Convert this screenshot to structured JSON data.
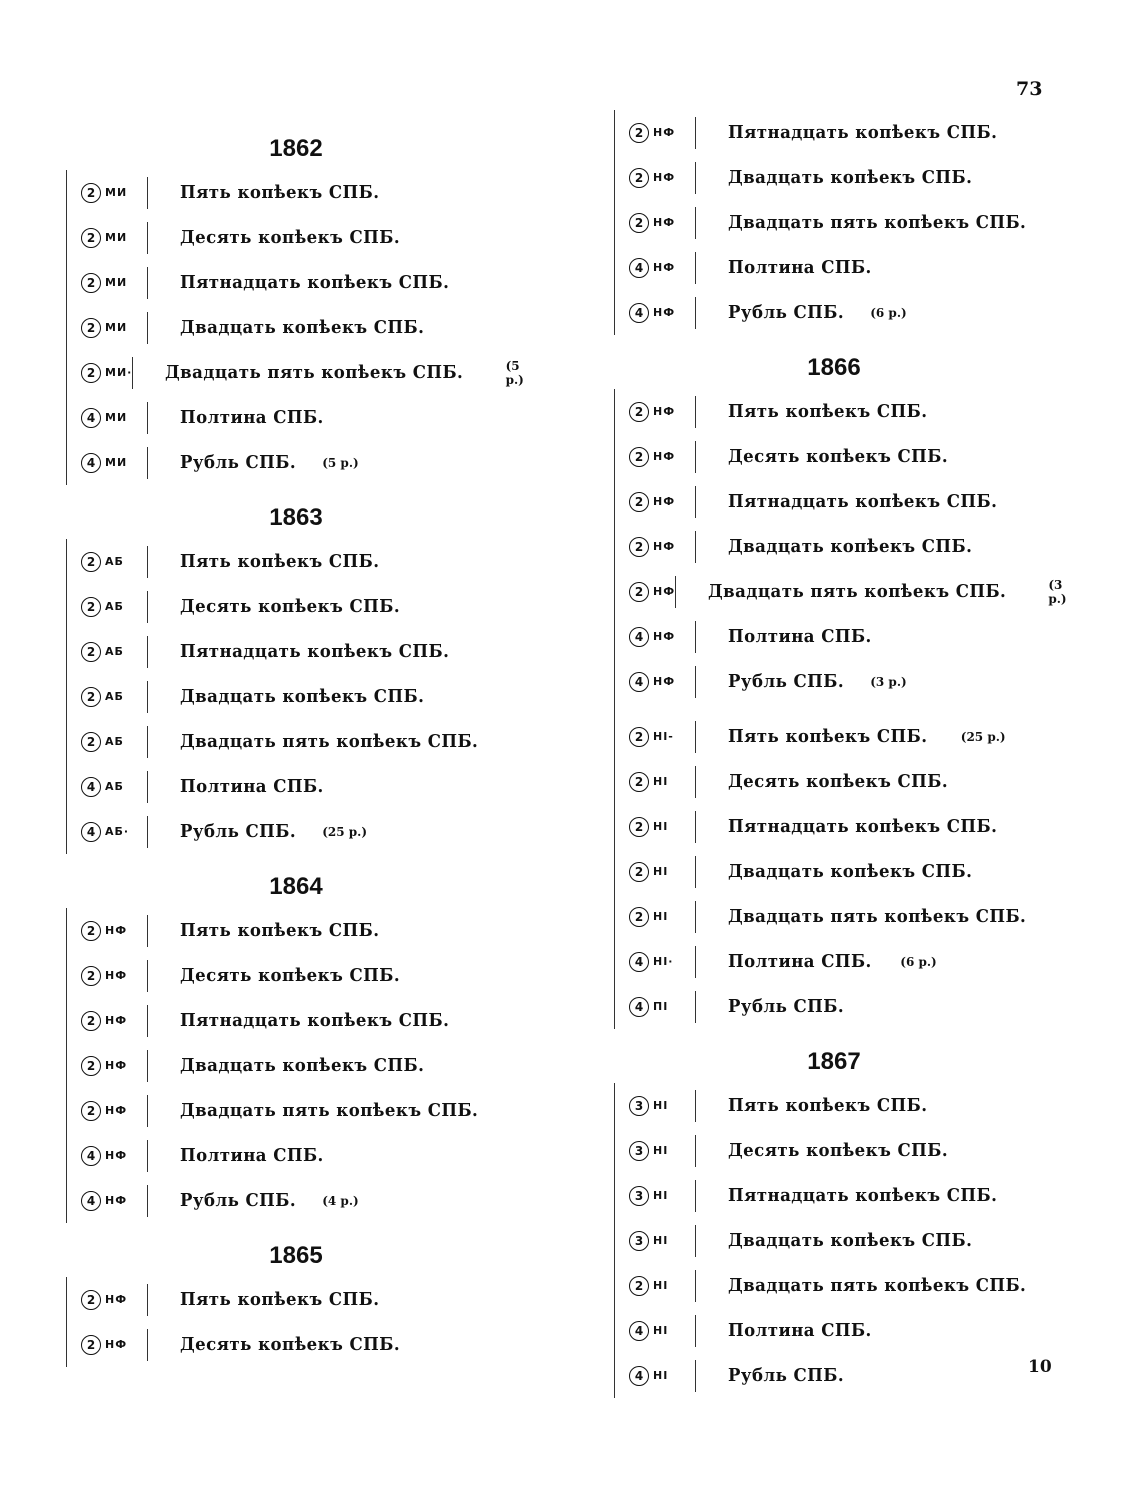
{
  "page_number": "73",
  "signature_mark": "10",
  "columns": [
    [
      {
        "year": "1862",
        "entries": [
          {
            "denom": "2",
            "mark": "МИ",
            "text": "Пять копѣекъ СПБ.",
            "note": ""
          },
          {
            "denom": "2",
            "mark": "МИ",
            "text": "Десять копѣекъ СПБ.",
            "note": ""
          },
          {
            "denom": "2",
            "mark": "МИ",
            "text": "Пятнадцать копѣекъ СПБ.",
            "note": ""
          },
          {
            "denom": "2",
            "mark": "МИ",
            "text": "Двадцать копѣекъ СПБ.",
            "note": ""
          },
          {
            "denom": "2",
            "mark": "МИ·",
            "text": "Двадцать пять копѣекъ СПБ.",
            "note": "(5 р.)"
          },
          {
            "denom": "4",
            "mark": "МИ",
            "text": "Полтина СПБ.",
            "note": ""
          },
          {
            "denom": "4",
            "mark": "МИ",
            "text": "Рубль СПБ.",
            "note": "(5 р.)"
          }
        ]
      },
      {
        "year": "1863",
        "entries": [
          {
            "denom": "2",
            "mark": "АБ",
            "text": "Пять копѣекъ СПБ.",
            "note": ""
          },
          {
            "denom": "2",
            "mark": "АБ",
            "text": "Десять копѣекъ СПБ.",
            "note": ""
          },
          {
            "denom": "2",
            "mark": "АБ",
            "text": "Пятнадцать копѣекъ СПБ.",
            "note": ""
          },
          {
            "denom": "2",
            "mark": "АБ",
            "text": "Двадцать копѣекъ СПБ.",
            "note": ""
          },
          {
            "denom": "2",
            "mark": "АБ",
            "text": "Двадцать пять копѣекъ СПБ.",
            "note": ""
          },
          {
            "denom": "4",
            "mark": "АБ",
            "text": "Полтина СПБ.",
            "note": ""
          },
          {
            "denom": "4",
            "mark": "АБ·",
            "text": "Рубль СПБ.",
            "note": "(25 р.)"
          }
        ]
      },
      {
        "year": "1864",
        "entries": [
          {
            "denom": "2",
            "mark": "НФ",
            "text": "Пять копѣекъ СПБ.",
            "note": ""
          },
          {
            "denom": "2",
            "mark": "НФ",
            "text": "Десять копѣекъ СПБ.",
            "note": ""
          },
          {
            "denom": "2",
            "mark": "НФ",
            "text": "Пятнадцать копѣекъ СПБ.",
            "note": ""
          },
          {
            "denom": "2",
            "mark": "НФ",
            "text": "Двадцать копѣекъ СПБ.",
            "note": ""
          },
          {
            "denom": "2",
            "mark": "НФ",
            "text": "Двадцать пять копѣекъ СПБ.",
            "note": ""
          },
          {
            "denom": "4",
            "mark": "НФ",
            "text": "Полтина СПБ.",
            "note": ""
          },
          {
            "denom": "4",
            "mark": "НФ",
            "text": "Рубль СПБ.",
            "note": "(4 р.)"
          }
        ]
      },
      {
        "year": "1865",
        "entries": [
          {
            "denom": "2",
            "mark": "НФ",
            "text": "Пять копѣекъ СПБ.",
            "note": ""
          },
          {
            "denom": "2",
            "mark": "НФ",
            "text": "Десять копѣекъ СПБ.",
            "note": ""
          }
        ]
      }
    ],
    [
      {
        "year": "",
        "entries": [
          {
            "denom": "2",
            "mark": "НФ",
            "text": "Пятнадцать копѣекъ СПБ.",
            "note": ""
          },
          {
            "denom": "2",
            "mark": "НФ",
            "text": "Двадцать копѣекъ СПБ.",
            "note": ""
          },
          {
            "denom": "2",
            "mark": "НФ",
            "text": "Двадцать пять копѣекъ СПБ.",
            "note": ""
          },
          {
            "denom": "4",
            "mark": "НФ",
            "text": "Полтина СПБ.",
            "note": ""
          },
          {
            "denom": "4",
            "mark": "НФ",
            "text": "Рубль СПБ.",
            "note": "(6 р.)"
          }
        ]
      },
      {
        "year": "1866",
        "entries": [
          {
            "denom": "2",
            "mark": "НФ",
            "text": "Пять копѣекъ СПБ.",
            "note": ""
          },
          {
            "denom": "2",
            "mark": "НФ",
            "text": "Десять копѣекъ СПБ.",
            "note": ""
          },
          {
            "denom": "2",
            "mark": "НФ",
            "text": "Пятнадцать копѣекъ СПБ.",
            "note": ""
          },
          {
            "denom": "2",
            "mark": "НФ",
            "text": "Двадцать копѣекъ СПБ.",
            "note": ""
          },
          {
            "denom": "2",
            "mark": "НФ",
            "text": "Двадцать пять копѣекъ СПБ.",
            "note": "(3 р.)"
          },
          {
            "denom": "4",
            "mark": "НФ",
            "text": "Полтина СПБ.",
            "note": ""
          },
          {
            "denom": "4",
            "mark": "НФ",
            "text": "Рубль СПБ.",
            "note": "(3 р.)"
          },
          {
            "denom": "2",
            "mark": "НІ-",
            "text": "Пять копѣекъ СПБ.",
            "note": "(25 р.)",
            "gap": true
          },
          {
            "denom": "2",
            "mark": "НІ",
            "text": "Десять копѣекъ СПБ.",
            "note": ""
          },
          {
            "denom": "2",
            "mark": "НІ",
            "text": "Пятнадцать копѣекъ СПБ.",
            "note": ""
          },
          {
            "denom": "2",
            "mark": "НІ",
            "text": "Двадцать копѣекъ СПБ.",
            "note": ""
          },
          {
            "denom": "2",
            "mark": "НІ",
            "text": "Двадцать пять копѣекъ СПБ.",
            "note": ""
          },
          {
            "denom": "4",
            "mark": "НІ·",
            "text": "Полтина СПБ.",
            "note": "(6 р.)"
          },
          {
            "denom": "4",
            "mark": "ПІ",
            "text": "Рубль СПБ.",
            "note": ""
          }
        ]
      },
      {
        "year": "1867",
        "entries": [
          {
            "denom": "3",
            "mark": "НІ",
            "text": "Пять копѣекъ СПБ.",
            "note": ""
          },
          {
            "denom": "3",
            "mark": "НІ",
            "text": "Десять копѣекъ СПБ.",
            "note": ""
          },
          {
            "denom": "3",
            "mark": "НІ",
            "text": "Пятнадцать копѣекъ СПБ.",
            "note": ""
          },
          {
            "denom": "3",
            "mark": "НІ",
            "text": "Двадцать копѣекъ СПБ.",
            "note": ""
          },
          {
            "denom": "2",
            "mark": "НІ",
            "text": "Двадцать пять копѣекъ СПБ.",
            "note": ""
          },
          {
            "denom": "4",
            "mark": "НІ",
            "text": "Полтина СПБ.",
            "note": ""
          },
          {
            "denom": "4",
            "mark": "НІ",
            "text": "Рубль СПБ.",
            "note": ""
          }
        ]
      }
    ]
  ]
}
